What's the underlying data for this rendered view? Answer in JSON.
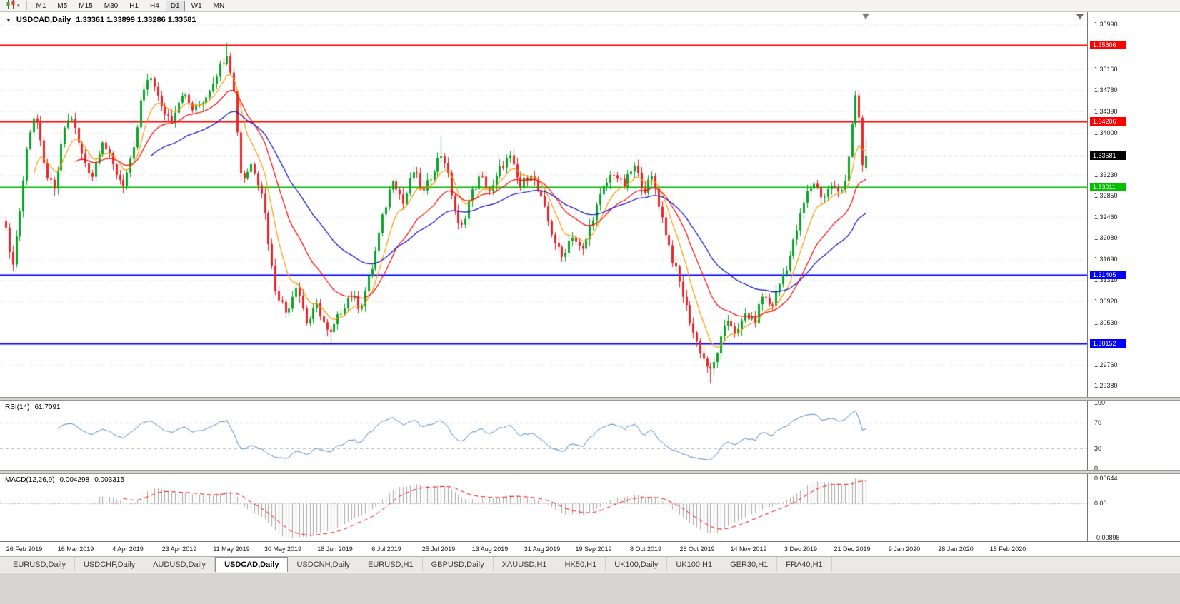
{
  "toolbar": {
    "timeframes": [
      "M1",
      "M5",
      "M15",
      "M30",
      "H1",
      "H4",
      "D1",
      "W1",
      "MN"
    ],
    "active_timeframe": "D1"
  },
  "chart": {
    "symbol_label": "USDCAD,Daily",
    "ohlc_text": "1.33361 1.33899 1.33286 1.33581",
    "open": "1.33361",
    "high": "1.33899",
    "low": "1.33286",
    "close": "1.33581"
  },
  "indicators": {
    "rsi": {
      "name": "RSI(14)",
      "value": "61.7091",
      "axis_labels": [
        "100",
        "70",
        "30",
        "0"
      ],
      "upper_level": 70,
      "lower_level": 30,
      "line_color": "#4a86c8"
    },
    "macd": {
      "name": "MACD(12,26,9)",
      "value_main": "0.004298",
      "value_signal": "0.003315",
      "axis_labels": [
        "0.00644",
        "0.00",
        "-0.00898"
      ],
      "axis_max": 0.00644,
      "axis_min": -0.00898,
      "histogram_color": "#a8a8a8",
      "signal_color": "#ff0000"
    }
  },
  "price_axis": {
    "ticks": [
      "1.35990",
      "1.35160",
      "1.34780",
      "1.34390",
      "1.34000",
      "1.33230",
      "1.32850",
      "1.32460",
      "1.32080",
      "1.31690",
      "1.31310",
      "1.30920",
      "1.30530",
      "1.29760",
      "1.29380"
    ],
    "badges": [
      {
        "label": "1.35606",
        "color": "#ff0000"
      },
      {
        "label": "1.34206",
        "color": "#ff0000"
      },
      {
        "label": "1.33581",
        "color": "#000000"
      },
      {
        "label": "1.33011",
        "color": "#00c000"
      },
      {
        "label": "1.31405",
        "color": "#0000ff"
      },
      {
        "label": "1.30152",
        "color": "#0000ff"
      }
    ]
  },
  "time_axis": {
    "labels": [
      "26 Feb 2019",
      "16 Mar 2019",
      "4 Apr 2019",
      "23 Apr 2019",
      "11 May 2019",
      "30 May 2019",
      "18 Jun 2019",
      "6 Jul 2019",
      "25 Jul 2019",
      "13 Aug 2019",
      "31 Aug 2019",
      "19 Sep 2019",
      "8 Oct 2019",
      "26 Oct 2019",
      "14 Nov 2019",
      "3 Dec 2019",
      "21 Dec 2019",
      "9 Jan 2020",
      "28 Jan 2020",
      "15 Feb 2020"
    ]
  },
  "tabs": {
    "items": [
      "EURUSD,Daily",
      "USDCHF,Daily",
      "AUDUSD,Daily",
      "USDCAD,Daily",
      "USDCNH,Daily",
      "EURUSD,H1",
      "GBPUSD,Daily",
      "XAUUSD,H1",
      "HK50,H1",
      "UK100,Daily",
      "UK100,H1",
      "GER30,H1",
      "FRA40,H1"
    ],
    "active": "USDCAD,Daily"
  },
  "colors": {
    "bull": "#0aa327",
    "bear": "#e8252a",
    "ma_fast": "#ff9800",
    "ma_mid": "#ff0000",
    "ma_slow": "#0a0ac8",
    "grid": "#d9d9d9",
    "current_price_line": "#9c9c9c"
  },
  "chart_data": {
    "type": "candlestick",
    "symbol": "USDCAD",
    "timeframe": "Daily",
    "visible_range": {
      "high": 1.3599,
      "low": 1.2938
    },
    "current_ohlc": {
      "open": 1.33361,
      "high": 1.33899,
      "low": 1.33286,
      "close": 1.33581
    },
    "horizontal_levels": [
      {
        "price": 1.35606,
        "color": "#ff0000",
        "role": "resistance",
        "style": "solid"
      },
      {
        "price": 1.34206,
        "color": "#ff0000",
        "role": "resistance",
        "style": "solid"
      },
      {
        "price": 1.33581,
        "color": "#9c9c9c",
        "role": "current-price",
        "style": "dashed"
      },
      {
        "price": 1.33011,
        "color": "#00c000",
        "role": "support",
        "style": "solid"
      },
      {
        "price": 1.31405,
        "color": "#0000ff",
        "role": "support",
        "style": "solid"
      },
      {
        "price": 1.30152,
        "color": "#0000ff",
        "role": "support",
        "style": "solid"
      }
    ],
    "candle_count": 250,
    "price_path_keyframes": [
      [
        0.0,
        1.3235
      ],
      [
        0.006,
        1.3145
      ],
      [
        0.014,
        1.323
      ],
      [
        0.026,
        1.3395
      ],
      [
        0.034,
        1.344
      ],
      [
        0.044,
        1.334
      ],
      [
        0.056,
        1.329
      ],
      [
        0.068,
        1.341
      ],
      [
        0.076,
        1.343
      ],
      [
        0.088,
        1.336
      ],
      [
        0.1,
        1.332
      ],
      [
        0.112,
        1.339
      ],
      [
        0.124,
        1.334
      ],
      [
        0.136,
        1.3305
      ],
      [
        0.148,
        1.336
      ],
      [
        0.158,
        1.347
      ],
      [
        0.17,
        1.3505
      ],
      [
        0.18,
        1.3445
      ],
      [
        0.192,
        1.3425
      ],
      [
        0.205,
        1.3475
      ],
      [
        0.218,
        1.344
      ],
      [
        0.232,
        1.3465
      ],
      [
        0.245,
        1.351
      ],
      [
        0.258,
        1.355
      ],
      [
        0.266,
        1.3465
      ],
      [
        0.274,
        1.331
      ],
      [
        0.286,
        1.3345
      ],
      [
        0.298,
        1.329
      ],
      [
        0.312,
        1.312
      ],
      [
        0.326,
        1.307
      ],
      [
        0.338,
        1.3125
      ],
      [
        0.35,
        1.305
      ],
      [
        0.362,
        1.3085
      ],
      [
        0.376,
        1.3025
      ],
      [
        0.388,
        1.307
      ],
      [
        0.4,
        1.3105
      ],
      [
        0.412,
        1.308
      ],
      [
        0.426,
        1.3155
      ],
      [
        0.438,
        1.3245
      ],
      [
        0.45,
        1.332
      ],
      [
        0.462,
        1.327
      ],
      [
        0.474,
        1.333
      ],
      [
        0.486,
        1.329
      ],
      [
        0.5,
        1.3345
      ],
      [
        0.508,
        1.3365
      ],
      [
        0.518,
        1.329
      ],
      [
        0.528,
        1.3215
      ],
      [
        0.54,
        1.3285
      ],
      [
        0.552,
        1.332
      ],
      [
        0.564,
        1.329
      ],
      [
        0.576,
        1.334
      ],
      [
        0.586,
        1.3355
      ],
      [
        0.598,
        1.33
      ],
      [
        0.61,
        1.333
      ],
      [
        0.622,
        1.328
      ],
      [
        0.634,
        1.322
      ],
      [
        0.646,
        1.317
      ],
      [
        0.658,
        1.3215
      ],
      [
        0.67,
        1.318
      ],
      [
        0.682,
        1.3245
      ],
      [
        0.694,
        1.3295
      ],
      [
        0.706,
        1.333
      ],
      [
        0.718,
        1.33
      ],
      [
        0.73,
        1.334
      ],
      [
        0.742,
        1.3295
      ],
      [
        0.752,
        1.332
      ],
      [
        0.762,
        1.325
      ],
      [
        0.774,
        1.3175
      ],
      [
        0.786,
        1.311
      ],
      [
        0.798,
        1.304
      ],
      [
        0.81,
        1.299
      ],
      [
        0.82,
        1.296
      ],
      [
        0.83,
        1.3015
      ],
      [
        0.84,
        1.306
      ],
      [
        0.85,
        1.303
      ],
      [
        0.86,
        1.307
      ],
      [
        0.87,
        1.305
      ],
      [
        0.88,
        1.3105
      ],
      [
        0.89,
        1.308
      ],
      [
        0.9,
        1.3125
      ],
      [
        0.91,
        1.3165
      ],
      [
        0.92,
        1.3225
      ],
      [
        0.93,
        1.3285
      ],
      [
        0.94,
        1.331
      ],
      [
        0.95,
        1.328
      ],
      [
        0.96,
        1.3305
      ],
      [
        0.97,
        1.3285
      ],
      [
        0.978,
        1.333
      ],
      [
        0.984,
        1.342
      ],
      [
        0.988,
        1.3465
      ],
      [
        0.992,
        1.342
      ],
      [
        0.996,
        1.334
      ],
      [
        1.0,
        1.33581
      ]
    ],
    "spike_wicks": [
      [
        0.258,
        "high",
        1.3565
      ],
      [
        0.376,
        "low",
        1.3013
      ],
      [
        0.508,
        "high",
        1.3395
      ],
      [
        0.82,
        "low",
        1.2941
      ],
      [
        0.988,
        "high",
        1.347
      ]
    ],
    "moving_averages": [
      {
        "period": 8,
        "color": "#ff9800"
      },
      {
        "period": 20,
        "color": "#ff0000"
      },
      {
        "period": 42,
        "color": "#0a0ac8"
      }
    ],
    "rsi_current": 61.7091,
    "macd_current": 0.004298,
    "macd_signal_current": 0.003315
  }
}
